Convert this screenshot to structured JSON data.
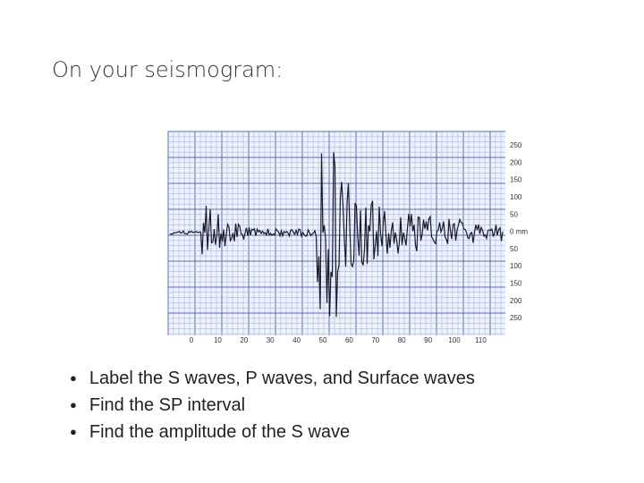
{
  "header": {
    "title": "On your seismogram:"
  },
  "seismogram": {
    "x_labels": [
      "0",
      "10",
      "20",
      "30",
      "40",
      "50",
      "60",
      "70",
      "80",
      "90",
      "100",
      "110"
    ],
    "y_labels": [
      "250",
      "200",
      "150",
      "100",
      "50",
      "0 mm",
      "50",
      "100",
      "150",
      "200",
      "250"
    ]
  },
  "bullets": [
    "Label the S waves, P waves, and Surface waves",
    "Find the SP interval",
    "Find the amplitude of the S wave"
  ]
}
